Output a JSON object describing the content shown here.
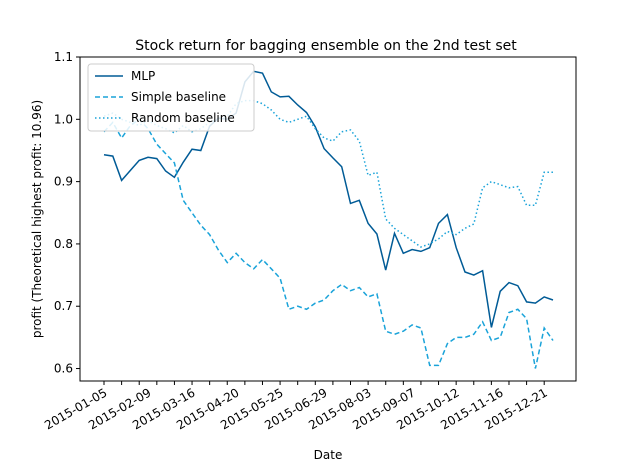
{
  "chart_data": {
    "type": "line",
    "title": "Stock return for bagging ensemble on the 2nd test set",
    "xlabel": "Date",
    "ylabel": "profit (Theoretical highest profit: 10.96)",
    "ylim": [
      0.58,
      1.1
    ],
    "yticks": [
      "0.6",
      "0.7",
      "0.8",
      "0.9",
      "1.0",
      "1.1"
    ],
    "xtick_labels": [
      "2015-01-05",
      "2015-02-09",
      "2015-03-16",
      "2015-04-20",
      "2015-05-25",
      "2015-06-29",
      "2015-08-03",
      "2015-09-07",
      "2015-10-12",
      "2015-11-16",
      "2015-12-21"
    ],
    "legend_position": "top-left",
    "series": [
      {
        "name": "MLP",
        "style": "solid",
        "color": "#005b96",
        "values": [
          0.943,
          0.941,
          0.902,
          0.918,
          0.934,
          0.939,
          0.937,
          0.917,
          0.907,
          0.931,
          0.952,
          0.95,
          0.989,
          1.002,
          1.0,
          1.01,
          1.06,
          1.077,
          1.074,
          1.044,
          1.036,
          1.037,
          1.023,
          1.011,
          0.988,
          0.953,
          0.938,
          0.924,
          0.865,
          0.87,
          0.833,
          0.816,
          0.758,
          0.817,
          0.785,
          0.791,
          0.788,
          0.794,
          0.833,
          0.847,
          0.794,
          0.755,
          0.75,
          0.757,
          0.666,
          0.724,
          0.738,
          0.733,
          0.707,
          0.705,
          0.715,
          0.71
        ]
      },
      {
        "name": "Simple baseline",
        "style": "dashed",
        "color": "#1aa3d9",
        "values": [
          0.98,
          0.995,
          0.97,
          0.99,
          1.0,
          0.985,
          0.96,
          0.945,
          0.93,
          0.87,
          0.85,
          0.83,
          0.815,
          0.79,
          0.77,
          0.785,
          0.77,
          0.76,
          0.775,
          0.76,
          0.745,
          0.695,
          0.7,
          0.695,
          0.705,
          0.71,
          0.725,
          0.735,
          0.725,
          0.73,
          0.715,
          0.72,
          0.66,
          0.655,
          0.66,
          0.67,
          0.665,
          0.605,
          0.605,
          0.64,
          0.65,
          0.65,
          0.655,
          0.675,
          0.645,
          0.65,
          0.69,
          0.695,
          0.68,
          0.6,
          0.665,
          0.645
        ]
      },
      {
        "name": "Random baseline",
        "style": "dotted",
        "color": "#1aa3d9",
        "values": [
          1.005,
          1.01,
          1.0,
          0.995,
          0.99,
          0.998,
          0.99,
          0.985,
          0.978,
          0.99,
          0.98,
          0.985,
          0.995,
          1.0,
          1.005,
          1.025,
          1.03,
          1.03,
          1.025,
          1.015,
          1.0,
          0.995,
          1.0,
          1.005,
          0.985,
          0.97,
          0.965,
          0.98,
          0.983,
          0.965,
          0.91,
          0.915,
          0.84,
          0.825,
          0.815,
          0.805,
          0.795,
          0.8,
          0.808,
          0.82,
          0.815,
          0.825,
          0.832,
          0.89,
          0.9,
          0.895,
          0.89,
          0.892,
          0.862,
          0.862,
          0.915,
          0.915
        ]
      }
    ]
  }
}
